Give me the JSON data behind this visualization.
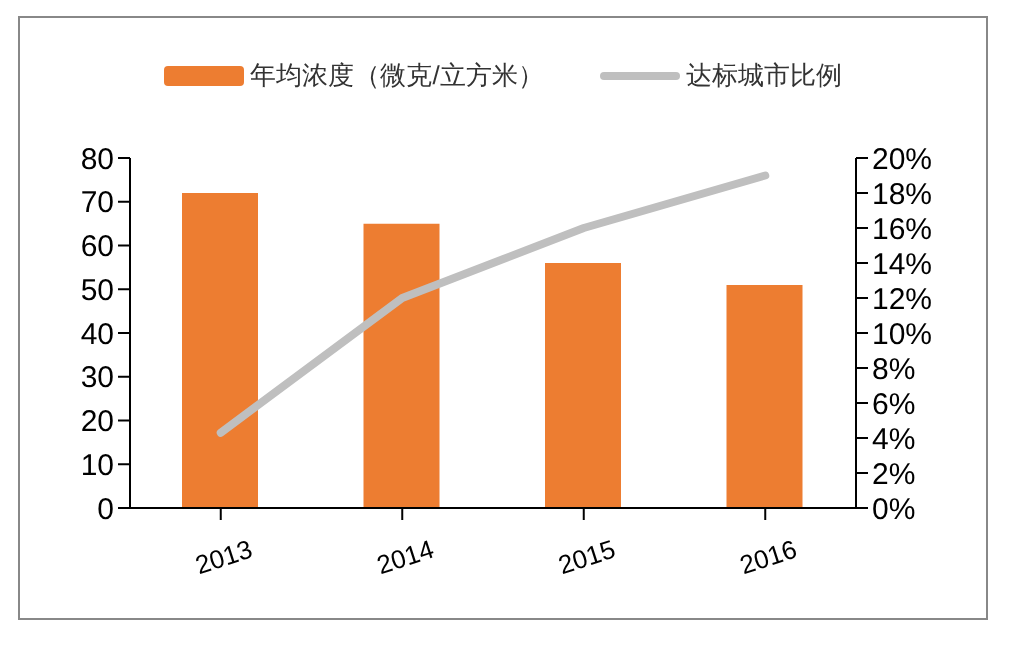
{
  "chart_data": {
    "type": "bar",
    "categories": [
      "2013",
      "2014",
      "2015",
      "2016"
    ],
    "series": [
      {
        "name": "年均浓度（微克/立方米）",
        "color": "#ed7d31",
        "values": [
          72,
          65,
          56,
          51
        ]
      },
      {
        "name": "达标城市比例",
        "type": "line",
        "axis": "y2",
        "color": "#bfbfbf",
        "values": [
          4.3,
          12,
          16,
          19
        ]
      }
    ],
    "ylim": [
      0,
      80
    ],
    "yticks": [
      0,
      10,
      20,
      30,
      40,
      50,
      60,
      70,
      80
    ],
    "y2lim": [
      0,
      20
    ],
    "y2ticks": [
      {
        "value": 0,
        "label": "0%"
      },
      {
        "value": 2,
        "label": "2%"
      },
      {
        "value": 4,
        "label": "4%"
      },
      {
        "value": 6,
        "label": "6%"
      },
      {
        "value": 8,
        "label": "8%"
      },
      {
        "value": 10,
        "label": "10%"
      },
      {
        "value": 12,
        "label": "12%"
      },
      {
        "value": 14,
        "label": "14%"
      },
      {
        "value": 16,
        "label": "16%"
      },
      {
        "value": 18,
        "label": "18%"
      },
      {
        "value": 20,
        "label": "20%"
      }
    ],
    "legend": "top",
    "marker": "none"
  }
}
